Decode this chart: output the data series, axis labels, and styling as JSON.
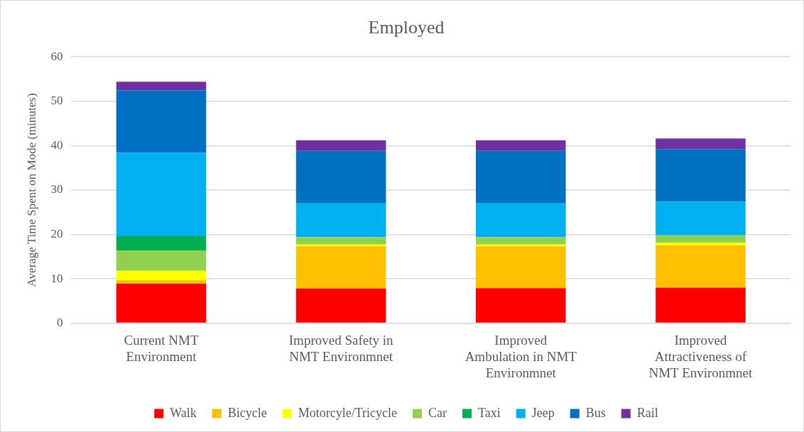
{
  "chart_data": {
    "type": "bar",
    "title": "Employed",
    "ylabel": "Average Time Spent on Mode (minutes)",
    "categories": [
      "Current NMT Environment",
      "Improved Safety in NMT Environmnet",
      "Improved Ambulation in NMT Environmnet",
      "Improved Attractiveness of NMT Environmnet"
    ],
    "stacked": true,
    "series": [
      {
        "name": "Walk",
        "color": "#ff0000",
        "values": [
          8.9,
          7.8,
          7.9,
          8.0
        ]
      },
      {
        "name": "Bicycle",
        "color": "#ffc000",
        "values": [
          0.8,
          9.5,
          9.4,
          9.5
        ]
      },
      {
        "name": "Motorcyle/Tricycle",
        "color": "#ffff00",
        "values": [
          2.1,
          0.4,
          0.4,
          0.6
        ]
      },
      {
        "name": "Car",
        "color": "#92d050",
        "values": [
          4.6,
          1.7,
          1.7,
          1.7
        ]
      },
      {
        "name": "Taxi",
        "color": "#00b050",
        "values": [
          3.2,
          0,
          0,
          0
        ]
      },
      {
        "name": "Jeep",
        "color": "#00b0f0",
        "values": [
          18.8,
          7.6,
          7.6,
          7.6
        ]
      },
      {
        "name": "Bus",
        "color": "#0070c0",
        "values": [
          14.1,
          11.8,
          11.8,
          11.8
        ]
      },
      {
        "name": "Rail",
        "color": "#7030a0",
        "values": [
          1.9,
          2.4,
          2.4,
          2.4
        ]
      }
    ],
    "ylim": [
      0,
      60
    ],
    "yticks": [
      0,
      10,
      20,
      30,
      40,
      50,
      60
    ],
    "grid": "y",
    "legend": "bottom"
  }
}
